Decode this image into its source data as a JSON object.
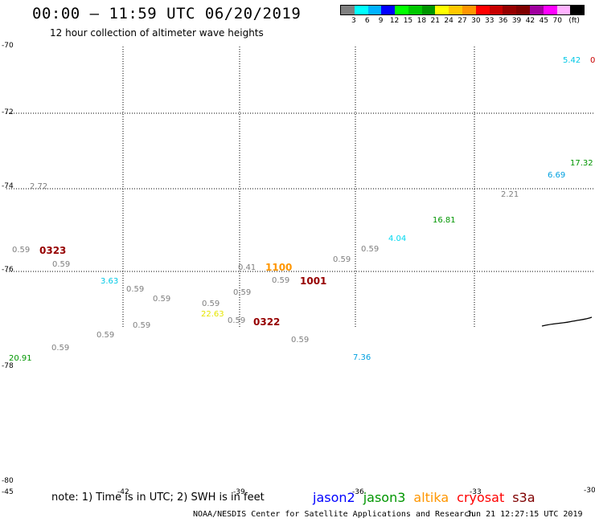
{
  "header": {
    "title": "00:00 – 11:59 UTC 06/20/2019",
    "subtitle": "12 hour collection of altimeter wave heights"
  },
  "colorbar": {
    "colors": [
      "#7f7f7f",
      "#00ffff",
      "#00b2ff",
      "#0000ff",
      "#00ff00",
      "#00c800",
      "#009600",
      "#ffff00",
      "#ffc800",
      "#ff9600",
      "#ff0000",
      "#c80000",
      "#960000",
      "#7f0000",
      "#a0009f",
      "#ff00ff",
      "#ffb2ff",
      "#000000"
    ],
    "labels": [
      "3",
      "6",
      "9",
      "12",
      "15",
      "18",
      "21",
      "24",
      "27",
      "30",
      "33",
      "36",
      "39",
      "42",
      "45",
      "70",
      "(ft)"
    ]
  },
  "axes": {
    "lat_labels": [
      "-70",
      "-72",
      "-74",
      "-76",
      "-78",
      "-80"
    ],
    "lon_labels": [
      "-45",
      "-42",
      "-39",
      "-36",
      "-33",
      "-30"
    ]
  },
  "observations": [
    {
      "text": "5.42",
      "color": "#00c8e6"
    },
    {
      "text": "0",
      "color": "#c80000"
    },
    {
      "text": "17.32",
      "color": "#009600"
    },
    {
      "text": "6.69",
      "color": "#00a0e0"
    },
    {
      "text": "2.72",
      "color": "#7f7f7f"
    },
    {
      "text": "2.21",
      "color": "#7f7f7f"
    },
    {
      "text": "16.81",
      "color": "#009600"
    },
    {
      "text": "4.04",
      "color": "#00d8f0"
    },
    {
      "text": "0.59",
      "color": "#7f7f7f"
    },
    {
      "text": "0.59",
      "color": "#7f7f7f"
    },
    {
      "text": "0.59",
      "color": "#7f7f7f"
    },
    {
      "text": "0.59",
      "color": "#7f7f7f"
    },
    {
      "text": "0.41",
      "color": "#7f7f7f"
    },
    {
      "text": "0.59",
      "color": "#7f7f7f"
    },
    {
      "text": "3.63",
      "color": "#00c8e6"
    },
    {
      "text": "0.59",
      "color": "#7f7f7f"
    },
    {
      "text": "0.59",
      "color": "#7f7f7f"
    },
    {
      "text": "0.59",
      "color": "#7f7f7f"
    },
    {
      "text": "0.59",
      "color": "#7f7f7f"
    },
    {
      "text": "22.63",
      "color": "#e6e600"
    },
    {
      "text": "0.59",
      "color": "#7f7f7f"
    },
    {
      "text": "0.59",
      "color": "#7f7f7f"
    },
    {
      "text": "0.59",
      "color": "#7f7f7f"
    },
    {
      "text": "0.59",
      "color": "#7f7f7f"
    },
    {
      "text": "0.59",
      "color": "#7f7f7f"
    },
    {
      "text": "7.36",
      "color": "#00a0e0"
    },
    {
      "text": "20.91",
      "color": "#009600"
    }
  ],
  "pass_labels": [
    {
      "text": "0323",
      "color": "#960000"
    },
    {
      "text": "1100",
      "color": "#ff9600"
    },
    {
      "text": "1001",
      "color": "#960000"
    },
    {
      "text": "0322",
      "color": "#960000"
    }
  ],
  "footer": {
    "note": "note: 1) Time is in UTC; 2) SWH is in feet",
    "satellites": [
      {
        "name": "jason2",
        "color": "#0000ff"
      },
      {
        "name": "jason3",
        "color": "#009600"
      },
      {
        "name": "altika",
        "color": "#ff9600"
      },
      {
        "name": "cryosat",
        "color": "#ff0000"
      },
      {
        "name": "s3a",
        "color": "#7f0000"
      }
    ],
    "credit": "NOAA/NESDIS Center for Satellite Applications and Research",
    "date": "Jun 21 12:27:15 UTC 2019"
  }
}
